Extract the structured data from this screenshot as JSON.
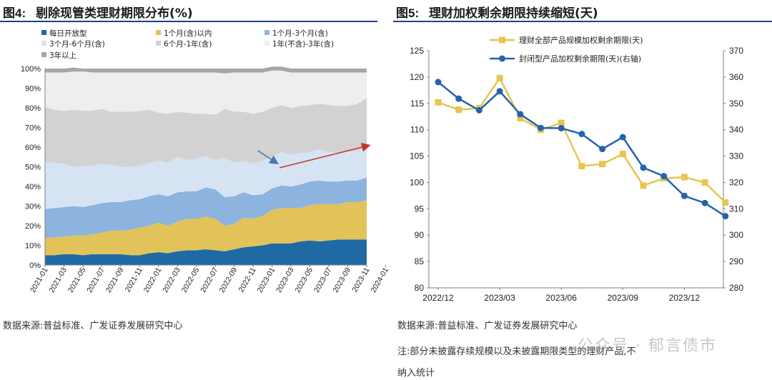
{
  "left": {
    "title_prefix": "图4:",
    "title_text": "剔除现管类理财期限分布(%)",
    "source": "数据来源:普益标准、广发证券发展研究中心",
    "chart_data": {
      "type": "area",
      "stacked": true,
      "xlabel": "",
      "ylabel": "",
      "ylim": [
        0,
        100
      ],
      "ytick_labels": [
        "0%",
        "10%",
        "20%",
        "30%",
        "40%",
        "50%",
        "60%",
        "70%",
        "80%",
        "90%",
        "100%"
      ],
      "xtick_labels": [
        "2021-01",
        "2021-03",
        "2021-05",
        "2021-07",
        "2021-09",
        "2021-11",
        "2022-01",
        "2022-03",
        "2022-05",
        "2022-07",
        "2022-09",
        "2022-11",
        "2023-01",
        "2023-03",
        "2023-05",
        "2023-07",
        "2023-09",
        "2023-11",
        "2024-01"
      ],
      "legend_position": "top",
      "series": [
        {
          "name": "每日开放型",
          "color": "#1f6aa5",
          "values": [
            5,
            5,
            5.5,
            5.5,
            5,
            5.5,
            5.5,
            5.5,
            5.5,
            5,
            5,
            6,
            6.5,
            6,
            7,
            7.5,
            7.5,
            8,
            7.5,
            7,
            8,
            9,
            9.5,
            10,
            11,
            11,
            11,
            12,
            12.5,
            12,
            12.5,
            13,
            13,
            13,
            13
          ]
        },
        {
          "name": "1个月(含)以内",
          "color": "#e2c35a",
          "values": [
            9,
            9,
            9,
            9.5,
            10,
            10,
            11,
            12,
            12,
            13,
            14,
            14,
            15,
            14,
            15,
            16,
            16,
            16.5,
            16,
            13,
            13,
            15,
            14,
            15,
            17,
            18,
            18,
            17,
            18,
            19,
            18.5,
            18,
            19,
            19,
            20
          ]
        },
        {
          "name": "1个月-3个月(含)",
          "color": "#8db3df",
          "values": [
            14.5,
            15,
            15,
            15,
            14.5,
            15,
            15,
            14.5,
            14.5,
            15,
            14.5,
            15,
            14.5,
            15,
            15,
            14,
            14,
            15,
            15,
            14.5,
            14,
            13,
            12,
            11,
            11,
            11.5,
            11,
            12,
            12,
            12,
            11.5,
            11.5,
            11,
            11,
            11.5
          ]
        },
        {
          "name": "3个月-6个月(含)",
          "color": "#d6e3f2",
          "values": [
            24,
            23,
            22,
            20,
            21,
            20,
            20,
            19,
            18,
            17,
            17,
            17,
            17,
            17,
            18,
            16,
            16.5,
            16,
            15,
            20,
            17,
            16,
            16,
            17,
            16,
            17,
            16,
            16,
            15,
            16,
            15,
            14.5,
            15,
            15,
            15.5
          ]
        },
        {
          "name": "6个月-1年(含)",
          "color": "#d2d2d2",
          "values": [
            28,
            27,
            27,
            29,
            28,
            28,
            28,
            27,
            28,
            28,
            28,
            27,
            24.5,
            25,
            23,
            24,
            23,
            21.5,
            23,
            25,
            26,
            25,
            25.5,
            25,
            25,
            24,
            24,
            24,
            24,
            23,
            24,
            24,
            23,
            24,
            25
          ]
        },
        {
          "name": "1年(不含)-3年(含)",
          "color": "#eeeeee",
          "values": [
            17.5,
            19,
            19.5,
            19.5,
            20,
            19.5,
            18.5,
            20,
            20,
            20,
            19.5,
            19,
            20.5,
            21,
            20,
            20.5,
            21,
            21,
            21.5,
            18,
            20,
            20,
            21,
            20,
            19,
            17.5,
            18,
            17,
            16.5,
            16,
            16.5,
            17,
            17,
            16,
            13
          ]
        },
        {
          "name": "3年以上",
          "color": "#a6a6a6",
          "values": [
            2,
            2,
            2,
            2,
            1.5,
            2,
            2,
            2,
            2,
            2,
            2,
            2,
            2,
            2,
            2,
            2,
            2,
            2,
            2,
            2.5,
            2,
            2,
            2,
            2,
            2,
            2,
            2,
            2,
            2,
            2,
            2,
            2,
            2,
            2,
            2
          ]
        }
      ],
      "annotations": [
        {
          "type": "arrow",
          "color": "#4a78b0",
          "from": [
            22.5,
            58.2
          ],
          "to": [
            24.5,
            51.9
          ]
        },
        {
          "type": "arrow",
          "color": "#c0392b",
          "from": [
            24.8,
            49.5
          ],
          "to": [
            34.2,
            60.8
          ]
        }
      ]
    }
  },
  "right": {
    "title_prefix": "图5:",
    "title_text": "理财加权剩余期限持续缩短(天)",
    "source": "数据来源:普益标准、广发证券发展研究中心",
    "note_line1": "注:部分未披露存续规模以及未披露期限类型的理财产品,不",
    "note_line2": "纳入统计",
    "watermark": "公众号 · 郁言债市",
    "chart_data": {
      "type": "line",
      "x_ticks": [
        "2022/12",
        "2023/03",
        "2023/06",
        "2023/09",
        "2023/12"
      ],
      "y_left": {
        "min": 80,
        "max": 125,
        "step": 5,
        "labels": [
          "80",
          "85",
          "90",
          "95",
          "100",
          "105",
          "110",
          "115",
          "120",
          "125"
        ]
      },
      "y_right": {
        "min": 280,
        "max": 370,
        "step": 10,
        "labels": [
          "280",
          "290",
          "300",
          "310",
          "320",
          "330",
          "340",
          "350",
          "360",
          "370"
        ]
      },
      "legend_position": "top",
      "series": [
        {
          "name": "理财全部产品规模加权剩余期限(天)",
          "color": "#e6c550",
          "marker": "square",
          "axis": "left",
          "x": [
            "2022/12",
            "2023/01",
            "2023/02",
            "2023/03",
            "2023/04",
            "2023/05",
            "2023/06",
            "2023/07",
            "2023/08",
            "2023/09",
            "2023/10",
            "2023/11",
            "2023/12",
            "2024/01",
            "2024/02"
          ],
          "values": [
            115.2,
            113.8,
            114.1,
            119.8,
            112.2,
            110.0,
            111.3,
            103.1,
            103.5,
            105.4,
            99.4,
            100.8,
            101.0,
            100.0,
            96.2
          ]
        },
        {
          "name": "封闭型产品加权剩余期限(天)(右轴)",
          "color": "#2563ad",
          "marker": "circle",
          "axis": "right",
          "x": [
            "2022/12",
            "2023/01",
            "2023/02",
            "2023/03",
            "2023/04",
            "2023/05",
            "2023/06",
            "2023/07",
            "2023/08",
            "2023/09",
            "2023/10",
            "2023/11",
            "2023/12",
            "2024/01",
            "2024/02"
          ],
          "values": [
            358.1,
            351.8,
            347.4,
            354.6,
            345.9,
            340.7,
            340.6,
            338.4,
            332.7,
            337.2,
            325.6,
            322.4,
            314.9,
            312.2,
            307.2
          ]
        }
      ]
    }
  }
}
